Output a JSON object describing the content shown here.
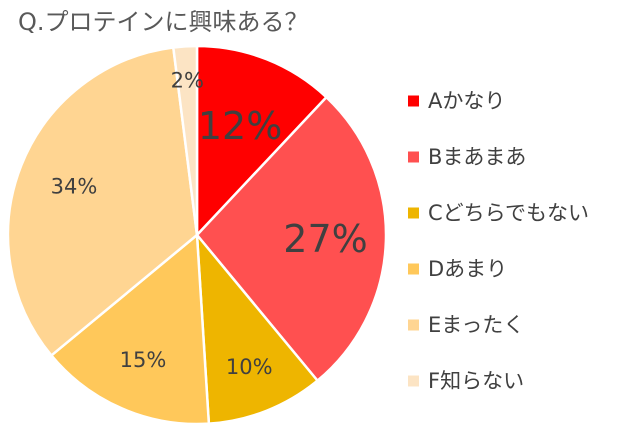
{
  "chart_data": {
    "type": "pie",
    "title": "Q.プロテインに興味ある？",
    "categories": [
      "Aかなり",
      "Bまあまあ",
      "Cどちらでもない",
      "Dあまり",
      "Eまったく",
      "F知らない"
    ],
    "values": [
      12,
      27,
      10,
      15,
      34,
      2
    ],
    "data_labels": [
      "12%",
      "27%",
      "10%",
      "15%",
      "34%",
      "2%"
    ],
    "colors": [
      "#FF0000",
      "#FF5050",
      "#EEB500",
      "#FFC85A",
      "#FFD592",
      "#FCE4C4"
    ],
    "start_angle_deg": 0,
    "direction": "clockwise",
    "legend_position": "right"
  }
}
